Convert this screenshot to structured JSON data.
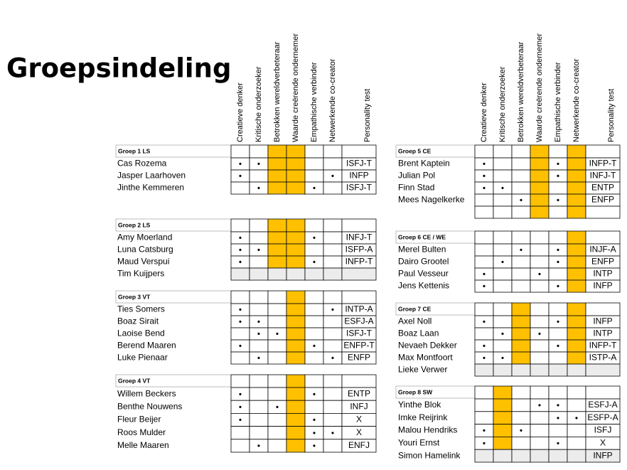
{
  "header": {
    "title": "Groepsindeling"
  },
  "columns": [
    "Creatieve denker",
    "Kritische onderzoeker",
    "Betrokken wereldverbeteraar",
    "Waarde creërende ondernemer",
    "Empathische verbinder",
    "Netwerkende co-creator",
    "Personality test"
  ],
  "highlight_color": "#ffc000",
  "shade_color": "#ececec",
  "groups": [
    {
      "name": "Groep 1 LS",
      "highlight_columns": [
        2,
        3
      ],
      "members": [
        {
          "name": "Cas Rozema",
          "cells": [
            "•",
            "•",
            null,
            null,
            null,
            null
          ],
          "test": "ISFJ-T"
        },
        {
          "name": "Jasper Laarhoven",
          "cells": [
            "•",
            null,
            null,
            null,
            null,
            "•"
          ],
          "test": "INFP"
        },
        {
          "name": "Jinthe Kemmeren",
          "cells": [
            null,
            "•",
            null,
            null,
            "•",
            null
          ],
          "test": "ISFJ-T"
        }
      ]
    },
    {
      "name": "Groep 2 LS",
      "highlight_columns": [
        2,
        3
      ],
      "members": [
        {
          "name": "Amy Moerland",
          "cells": [
            "•",
            null,
            null,
            null,
            "•",
            null
          ],
          "test": "INFJ-T"
        },
        {
          "name": "Luna Catsburg",
          "cells": [
            "•",
            "•",
            null,
            null,
            null,
            null
          ],
          "test": "ISFP-A"
        },
        {
          "name": "Maud Verspui",
          "cells": [
            "•",
            null,
            null,
            null,
            "•",
            null
          ],
          "test": "INFP-T"
        },
        {
          "name": "Tim Kuijpers",
          "shaded": true
        }
      ]
    },
    {
      "name": "Groep 3 VT",
      "highlight_columns": [
        3
      ],
      "members": [
        {
          "name": "Ties Somers",
          "cells": [
            "•",
            null,
            null,
            null,
            null,
            "•"
          ],
          "test": "INTP-A"
        },
        {
          "name": "Boaz Sirait",
          "cells": [
            "•",
            "•",
            null,
            null,
            null,
            null
          ],
          "test": "ESFJ-A"
        },
        {
          "name": "Laoise Bend",
          "cells": [
            null,
            "•",
            "•",
            null,
            null,
            null
          ],
          "test": "ISFJ-T"
        },
        {
          "name": "Berend Maaren",
          "cells": [
            "•",
            null,
            null,
            null,
            "•",
            null
          ],
          "test": "ENFP-T"
        },
        {
          "name": "Luke Pienaar",
          "cells": [
            null,
            "•",
            null,
            null,
            null,
            "•"
          ],
          "test": "ENFP"
        }
      ]
    },
    {
      "name": "Groep 4 VT",
      "highlight_columns": [
        3
      ],
      "members": [
        {
          "name": "Willem Beckers",
          "cells": [
            "•",
            null,
            null,
            null,
            "•",
            null
          ],
          "test": "ENTP"
        },
        {
          "name": "Benthe Nouwens",
          "cells": [
            "•",
            null,
            "•",
            null,
            null,
            null
          ],
          "test": "INFJ"
        },
        {
          "name": "Fleur Beijer",
          "cells": [
            "•",
            null,
            null,
            null,
            "•",
            null
          ],
          "test": "X"
        },
        {
          "name": "Roos Mulder",
          "cells": [
            null,
            null,
            null,
            null,
            "•",
            "•"
          ],
          "test": "X"
        },
        {
          "name": "Melle Maaren",
          "cells": [
            null,
            "•",
            null,
            null,
            "•",
            null
          ],
          "test": "ENFJ"
        }
      ]
    },
    {
      "name": "Groep 5 CE",
      "highlight_columns": [
        3,
        5
      ],
      "members": [
        {
          "name": "Brent Kaptein",
          "cells": [
            "•",
            null,
            null,
            null,
            "•",
            null
          ],
          "test": "INFP-T"
        },
        {
          "name": "Julian Pol",
          "cells": [
            "•",
            null,
            null,
            null,
            "•",
            null
          ],
          "test": "INFJ-T"
        },
        {
          "name": "Finn Stad",
          "cells": [
            "•",
            "•",
            null,
            null,
            null,
            null
          ],
          "test": "ENTP"
        },
        {
          "name": "Mees Nagelkerke",
          "cells": [
            null,
            null,
            "•",
            null,
            "•",
            null
          ],
          "test": "ENFP"
        },
        {}
      ]
    },
    {
      "name": "Groep 6 CE / WE",
      "highlight_columns": [
        5
      ],
      "members": [
        {
          "name": "Merel Bulten",
          "cells": [
            null,
            null,
            "•",
            null,
            "•",
            null
          ],
          "test": "INJF-A"
        },
        {
          "name": "Dairo Grootel",
          "cells": [
            null,
            "•",
            null,
            null,
            "•",
            null
          ],
          "test": "ENFP"
        },
        {
          "name": "Paul Vesseur",
          "cells": [
            "•",
            null,
            null,
            "•",
            null,
            null
          ],
          "test": "INTP"
        },
        {
          "name": "Jens Kettenis",
          "color": "#2e75b6",
          "cells": [
            "•",
            null,
            null,
            null,
            "•",
            null
          ],
          "test": "INFP"
        }
      ]
    },
    {
      "name": "Groep 7 CE",
      "highlight_columns": [
        2,
        5
      ],
      "members": [
        {
          "name": "Axel Noll",
          "cells": [
            "•",
            null,
            null,
            null,
            "•",
            null
          ],
          "test": "INFP"
        },
        {
          "name": "Boaz Laan",
          "cells": [
            null,
            "•",
            null,
            "•",
            null,
            null
          ],
          "test": "INTP"
        },
        {
          "name": "Nevaeh Dekker",
          "cells": [
            "•",
            null,
            null,
            null,
            "•",
            null
          ],
          "test": "INFP-T"
        },
        {
          "name": "Max Montfoort",
          "cells": [
            "•",
            "•",
            null,
            null,
            null,
            null
          ],
          "test": "ISTP-A"
        },
        {
          "name": "Lieke Verwer",
          "shaded": true
        }
      ]
    },
    {
      "name": "Groep 8 SW",
      "highlight_columns": [
        1
      ],
      "members": [
        {
          "name": "Yinthe Blok",
          "cells": [
            null,
            null,
            null,
            "•",
            "•",
            null
          ],
          "test": "ESFJ-A"
        },
        {
          "name": "Imke Reijrink",
          "cells": [
            null,
            null,
            null,
            null,
            "•",
            "•"
          ],
          "test": "ESFP-A"
        },
        {
          "name": "Malou Hendriks",
          "cells": [
            "•",
            null,
            "•",
            null,
            null,
            null
          ],
          "test": "ISFJ"
        },
        {
          "name": "Youri Ernst",
          "cells": [
            "•",
            null,
            null,
            null,
            "•",
            null
          ],
          "test": "X"
        },
        {
          "name": "Simon Hamelink",
          "shaded": true,
          "test": "INFP"
        }
      ]
    }
  ]
}
